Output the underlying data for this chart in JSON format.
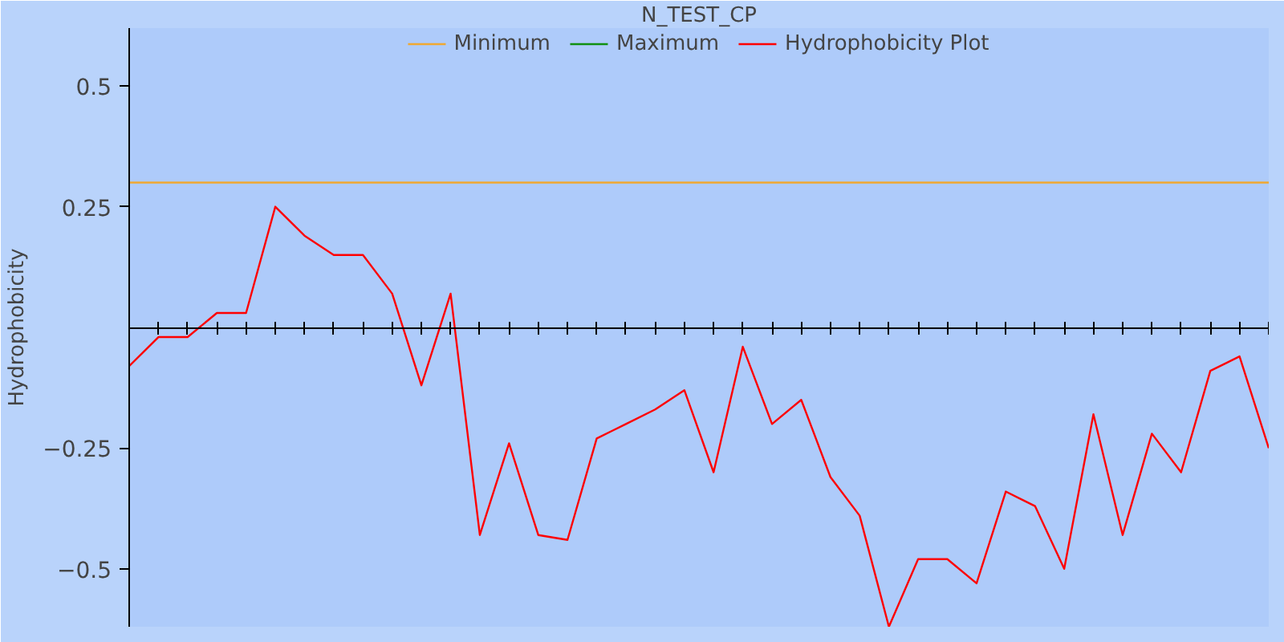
{
  "chart_data": {
    "type": "line",
    "title": "N_TEST_CP",
    "ylabel": "Hydrophobicity",
    "categories": [
      null,
      null,
      null,
      null,
      null,
      null,
      null,
      null,
      null,
      null,
      null,
      null,
      null,
      null,
      null,
      null,
      null,
      null,
      null,
      null,
      null,
      null,
      null,
      null,
      null,
      null,
      null,
      null,
      null,
      null,
      null,
      null,
      null,
      null,
      null,
      null,
      null,
      null,
      null,
      null
    ],
    "series": [
      {
        "name": "Minimum",
        "color": "#f0a830",
        "values": [
          0.3,
          0.3,
          0.3,
          0.3,
          0.3,
          0.3,
          0.3,
          0.3,
          0.3,
          0.3,
          0.3,
          0.3,
          0.3,
          0.3,
          0.3,
          0.3,
          0.3,
          0.3,
          0.3,
          0.3,
          0.3,
          0.3,
          0.3,
          0.3,
          0.3,
          0.3,
          0.3,
          0.3,
          0.3,
          0.3,
          0.3,
          0.3,
          0.3,
          0.3,
          0.3,
          0.3,
          0.3,
          0.3,
          0.3,
          0.3
        ]
      },
      {
        "name": "Maximum",
        "color": "#109010",
        "values": [
          null,
          null,
          null,
          null,
          null,
          null,
          null,
          null,
          null,
          null,
          null,
          null,
          null,
          null,
          null,
          null,
          null,
          null,
          null,
          null,
          null,
          null,
          null,
          null,
          null,
          null,
          null,
          null,
          null,
          null,
          null,
          null,
          null,
          null,
          null,
          null,
          null,
          null,
          null,
          null
        ]
      },
      {
        "name": "Hydrophobicity Plot",
        "color": "#ff0000",
        "values": [
          -0.08,
          -0.02,
          -0.02,
          0.03,
          0.03,
          0.25,
          0.19,
          0.15,
          0.15,
          0.07,
          -0.12,
          0.07,
          -0.43,
          -0.24,
          -0.43,
          -0.44,
          -0.23,
          -0.2,
          -0.17,
          -0.13,
          -0.3,
          -0.04,
          -0.2,
          -0.15,
          -0.31,
          -0.39,
          -0.62,
          -0.48,
          -0.48,
          -0.53,
          -0.34,
          -0.37,
          -0.5,
          -0.18,
          -0.43,
          -0.22,
          -0.3,
          -0.09,
          -0.06,
          -0.25
        ]
      }
    ],
    "ylim": [
      -0.62,
      0.62
    ],
    "yticks": [
      -0.5,
      -0.25,
      0.25,
      0.5
    ],
    "tick_labels": "y",
    "grid": false,
    "legend": "top",
    "marker": "none",
    "line_style": "solid"
  }
}
